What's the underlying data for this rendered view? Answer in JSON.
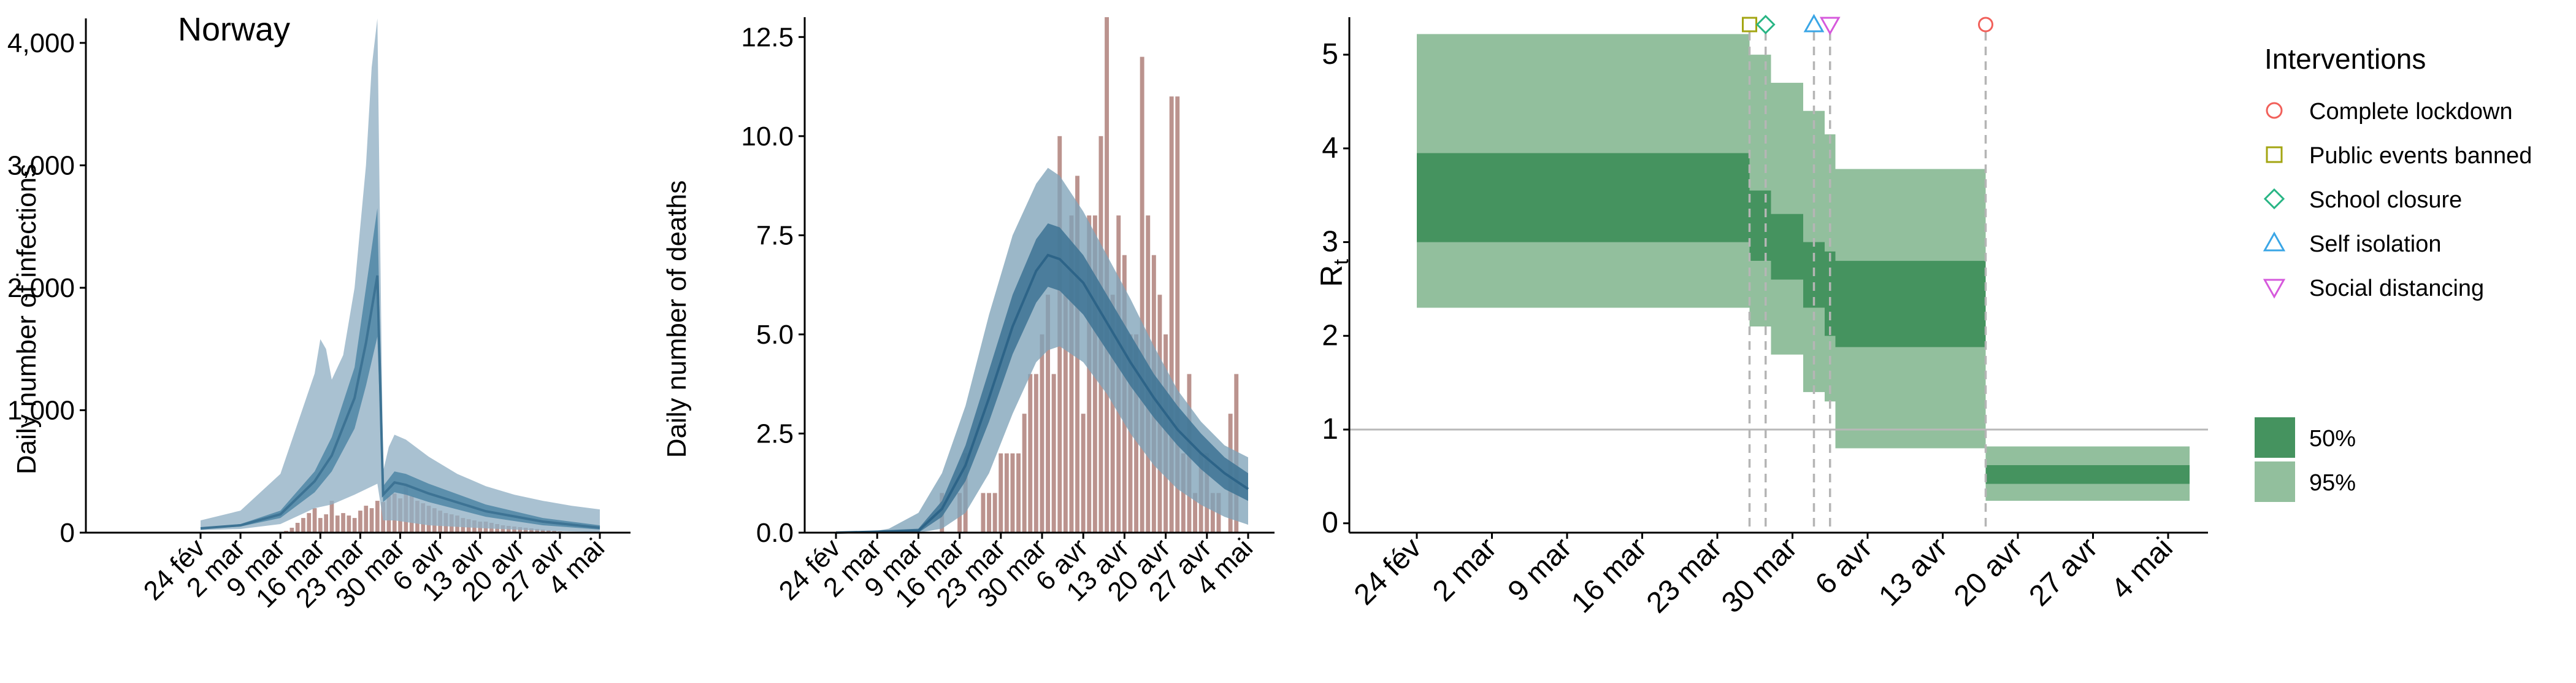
{
  "colors": {
    "infection_ci95": "#91b0c4",
    "infection_ci50": "#4f86a6",
    "infection_median": "#3d7394",
    "death_ci95": "#7fa3b8",
    "death_ci50": "#3d7394",
    "death_median": "#2d6488",
    "bar": "#b58a84",
    "rt_ci50": "#45935f",
    "rt_ci95": "#92bf9d",
    "axis": "#000000",
    "dashed": "#b5b5b5"
  },
  "dates": [
    "24 fév",
    "2 mar",
    "9 mar",
    "16 mar",
    "23 mar",
    "30 mar",
    "6 avr",
    "13 avr",
    "20 avr",
    "27 avr",
    "4 mai"
  ],
  "chart_data": [
    {
      "type": "area",
      "title": "Norway",
      "xlabel": "",
      "ylabel": "Daily number of infections",
      "ylim": [
        0,
        4200
      ],
      "yticks": [
        "0",
        "1,000",
        "2,000",
        "3,000",
        "4,000"
      ],
      "ytick_values": [
        0,
        1000,
        2000,
        3000,
        4000
      ],
      "x_start": "2020-02-24",
      "ci95_upper": [
        [
          0,
          100
        ],
        [
          7,
          180
        ],
        [
          14,
          480
        ],
        [
          20,
          1300
        ],
        [
          21,
          1580
        ],
        [
          22,
          1500
        ],
        [
          23,
          1250
        ],
        [
          25,
          1450
        ],
        [
          27,
          2000
        ],
        [
          29,
          3000
        ],
        [
          30,
          3800
        ],
        [
          31,
          4200
        ],
        [
          32,
          500
        ],
        [
          33,
          700
        ],
        [
          34,
          800
        ],
        [
          36,
          760
        ],
        [
          40,
          620
        ],
        [
          45,
          480
        ],
        [
          50,
          380
        ],
        [
          55,
          310
        ],
        [
          60,
          260
        ],
        [
          65,
          220
        ],
        [
          70,
          190
        ]
      ],
      "ci95_lower": [
        [
          0,
          20
        ],
        [
          7,
          30
        ],
        [
          14,
          70
        ],
        [
          20,
          200
        ],
        [
          23,
          230
        ],
        [
          27,
          310
        ],
        [
          31,
          400
        ],
        [
          32,
          100
        ],
        [
          34,
          100
        ],
        [
          40,
          60
        ],
        [
          50,
          35
        ],
        [
          60,
          15
        ],
        [
          70,
          5
        ]
      ],
      "ci50_upper": [
        [
          0,
          40
        ],
        [
          7,
          70
        ],
        [
          14,
          180
        ],
        [
          20,
          500
        ],
        [
          23,
          780
        ],
        [
          27,
          1350
        ],
        [
          29,
          2000
        ],
        [
          31,
          2650
        ],
        [
          32,
          380
        ],
        [
          34,
          500
        ],
        [
          36,
          480
        ],
        [
          40,
          400
        ],
        [
          50,
          230
        ],
        [
          60,
          120
        ],
        [
          70,
          60
        ]
      ],
      "ci50_lower": [
        [
          0,
          30
        ],
        [
          7,
          50
        ],
        [
          14,
          120
        ],
        [
          20,
          330
        ],
        [
          23,
          500
        ],
        [
          27,
          850
        ],
        [
          29,
          1200
        ],
        [
          31,
          1600
        ],
        [
          32,
          250
        ],
        [
          34,
          330
        ],
        [
          36,
          310
        ],
        [
          40,
          250
        ],
        [
          50,
          130
        ],
        [
          60,
          60
        ],
        [
          70,
          25
        ]
      ],
      "median": [
        [
          0,
          35
        ],
        [
          7,
          60
        ],
        [
          14,
          150
        ],
        [
          20,
          420
        ],
        [
          23,
          630
        ],
        [
          27,
          1100
        ],
        [
          29,
          1550
        ],
        [
          31,
          2100
        ],
        [
          32,
          310
        ],
        [
          34,
          410
        ],
        [
          36,
          390
        ],
        [
          40,
          320
        ],
        [
          50,
          175
        ],
        [
          60,
          90
        ],
        [
          70,
          40
        ]
      ],
      "bars": {
        "start_day": 14,
        "values": [
          5,
          15,
          40,
          80,
          120,
          160,
          200,
          120,
          150,
          260,
          140,
          160,
          140,
          120,
          180,
          220,
          200,
          260,
          250,
          300,
          320,
          280,
          400,
          300,
          260,
          240,
          220,
          200,
          180,
          160,
          150,
          140,
          120,
          110,
          100,
          90,
          90,
          80,
          70,
          60,
          55,
          50,
          45,
          40,
          35,
          30,
          25,
          20,
          15,
          10
        ]
      }
    },
    {
      "type": "area",
      "title": "",
      "xlabel": "",
      "ylabel": "Daily number of deaths",
      "ylim": [
        0,
        13
      ],
      "yticks": [
        "0.0",
        "2.5",
        "5.0",
        "7.5",
        "10.0",
        "12.5"
      ],
      "ytick_values": [
        0,
        2.5,
        5,
        7.5,
        10,
        12.5
      ],
      "x_start": "2020-02-24",
      "ci95_upper": [
        [
          0,
          0
        ],
        [
          5,
          0
        ],
        [
          9,
          0.1
        ],
        [
          14,
          0.5
        ],
        [
          18,
          1.5
        ],
        [
          22,
          3.2
        ],
        [
          26,
          5.5
        ],
        [
          30,
          7.5
        ],
        [
          34,
          8.8
        ],
        [
          36,
          9.2
        ],
        [
          38,
          9.0
        ],
        [
          42,
          8.1
        ],
        [
          46,
          7.0
        ],
        [
          50,
          5.9
        ],
        [
          54,
          4.7
        ],
        [
          58,
          3.6
        ],
        [
          62,
          2.8
        ],
        [
          66,
          2.2
        ],
        [
          70,
          1.9
        ]
      ],
      "ci95_lower": [
        [
          0,
          0
        ],
        [
          14,
          0
        ],
        [
          18,
          0.1
        ],
        [
          22,
          0.5
        ],
        [
          26,
          1.5
        ],
        [
          30,
          3.0
        ],
        [
          34,
          4.3
        ],
        [
          36,
          4.6
        ],
        [
          38,
          4.7
        ],
        [
          42,
          4.3
        ],
        [
          46,
          3.5
        ],
        [
          50,
          2.5
        ],
        [
          54,
          1.7
        ],
        [
          58,
          1.1
        ],
        [
          62,
          0.7
        ],
        [
          66,
          0.4
        ],
        [
          70,
          0.2
        ]
      ],
      "ci50_upper": [
        [
          0,
          0
        ],
        [
          14,
          0.1
        ],
        [
          18,
          0.8
        ],
        [
          22,
          2.2
        ],
        [
          26,
          4.1
        ],
        [
          30,
          6.0
        ],
        [
          34,
          7.4
        ],
        [
          36,
          7.8
        ],
        [
          38,
          7.7
        ],
        [
          42,
          7.0
        ],
        [
          46,
          6.0
        ],
        [
          50,
          5.0
        ],
        [
          54,
          4.0
        ],
        [
          58,
          3.2
        ],
        [
          62,
          2.5
        ],
        [
          66,
          1.9
        ],
        [
          70,
          1.5
        ]
      ],
      "ci50_lower": [
        [
          0,
          0
        ],
        [
          14,
          0
        ],
        [
          18,
          0.4
        ],
        [
          22,
          1.3
        ],
        [
          26,
          2.8
        ],
        [
          30,
          4.5
        ],
        [
          34,
          5.8
        ],
        [
          36,
          6.2
        ],
        [
          38,
          6.1
        ],
        [
          42,
          5.5
        ],
        [
          46,
          4.6
        ],
        [
          50,
          3.7
        ],
        [
          54,
          2.9
        ],
        [
          58,
          2.2
        ],
        [
          62,
          1.6
        ],
        [
          66,
          1.1
        ],
        [
          70,
          0.8
        ]
      ],
      "median": [
        [
          0,
          0
        ],
        [
          14,
          0.05
        ],
        [
          18,
          0.6
        ],
        [
          22,
          1.7
        ],
        [
          26,
          3.4
        ],
        [
          30,
          5.2
        ],
        [
          34,
          6.6
        ],
        [
          36,
          7.0
        ],
        [
          38,
          6.9
        ],
        [
          42,
          6.3
        ],
        [
          46,
          5.3
        ],
        [
          50,
          4.3
        ],
        [
          54,
          3.4
        ],
        [
          58,
          2.6
        ],
        [
          62,
          2.0
        ],
        [
          66,
          1.5
        ],
        [
          70,
          1.1
        ]
      ],
      "bars": {
        "start_day": 18,
        "values": [
          1,
          0,
          0,
          1,
          2,
          0,
          0,
          1,
          1,
          1,
          2,
          2,
          2,
          2,
          3,
          4,
          4,
          5,
          6,
          4,
          10,
          6,
          8,
          9,
          3,
          8,
          8,
          10,
          13,
          6,
          8,
          7,
          5,
          5,
          12,
          8,
          7,
          6,
          5,
          11,
          11,
          2,
          4,
          1,
          2,
          2,
          1,
          1,
          0,
          3,
          4
        ]
      }
    },
    {
      "type": "area",
      "title": "",
      "xlabel": "",
      "ylabel": "Rt",
      "ylim": [
        -0.1,
        5.4
      ],
      "yticks": [
        "0",
        "1",
        "2",
        "3",
        "4",
        "5"
      ],
      "ytick_values": [
        0,
        1,
        2,
        3,
        4,
        5
      ],
      "x_start": "2020-02-24",
      "reference_line": 1,
      "ci95": [
        [
          0,
          31,
          2.3,
          5.22
        ],
        [
          31,
          33,
          2.1,
          5.0
        ],
        [
          33,
          36,
          1.8,
          4.7
        ],
        [
          36,
          38,
          1.4,
          4.4
        ],
        [
          38,
          39,
          1.3,
          4.15
        ],
        [
          39,
          53,
          0.8,
          3.78
        ],
        [
          53,
          72,
          0.24,
          0.82
        ]
      ],
      "ci50": [
        [
          0,
          31,
          3.0,
          3.95
        ],
        [
          31,
          33,
          2.8,
          3.55
        ],
        [
          33,
          36,
          2.6,
          3.3
        ],
        [
          36,
          38,
          2.3,
          3.0
        ],
        [
          38,
          39,
          2.0,
          2.9
        ],
        [
          39,
          53,
          1.88,
          2.8
        ],
        [
          53,
          72,
          0.42,
          0.62
        ]
      ],
      "interventions": [
        {
          "name": "Complete lockdown",
          "day": 53,
          "shape": "circle",
          "color": "#f1605a"
        },
        {
          "name": "Public events banned",
          "day": 31,
          "shape": "square",
          "color": "#a3a512"
        },
        {
          "name": "School closure",
          "day": 32.5,
          "shape": "diamond",
          "color": "#27b584"
        },
        {
          "name": "Self isolation",
          "day": 37,
          "shape": "triangle-up",
          "color": "#3aa6e6"
        },
        {
          "name": "Social distancing",
          "day": 38.5,
          "shape": "triangle-down",
          "color": "#d659dc"
        }
      ],
      "legend": {
        "title": "Interventions",
        "ci_labels": [
          "50%",
          "95%"
        ],
        "placement": "right"
      }
    }
  ]
}
